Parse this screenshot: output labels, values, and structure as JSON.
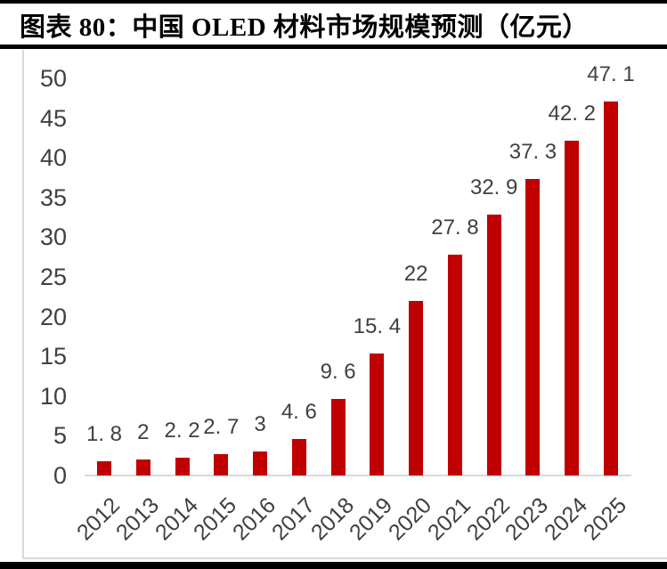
{
  "header": {
    "title": "图表 80：中国 OLED 材料市场规模预测（亿元）"
  },
  "chart_data": {
    "type": "bar",
    "title": "中国 OLED 材料市场规模预测（亿元）",
    "unit": "亿元",
    "categories": [
      "2012",
      "2013",
      "2014",
      "2015",
      "2016",
      "2017",
      "2018",
      "2019",
      "2020",
      "2021",
      "2022",
      "2023",
      "2024",
      "2025"
    ],
    "values": [
      1.8,
      2,
      2.2,
      2.7,
      3,
      4.6,
      9.6,
      15.4,
      22,
      27.8,
      32.9,
      37.3,
      42.2,
      47.1
    ],
    "value_labels": [
      "1. 8",
      "2",
      "2. 2",
      "2. 7",
      "3",
      "4. 6",
      "9. 6",
      "15. 4",
      "22",
      "27. 8",
      "32. 9",
      "37. 3",
      "42. 2",
      "47. 1"
    ],
    "xlabel": "",
    "ylabel": "",
    "ylim": [
      0,
      50
    ],
    "yticks": [
      0,
      5,
      10,
      15,
      20,
      25,
      30,
      35,
      40,
      45,
      50
    ],
    "grid": false,
    "legend": "none",
    "colors": {
      "bar": "#c00000",
      "text": "#404040",
      "axis": "#d9d9d9",
      "title": "#000000",
      "divider": "#000000"
    }
  }
}
